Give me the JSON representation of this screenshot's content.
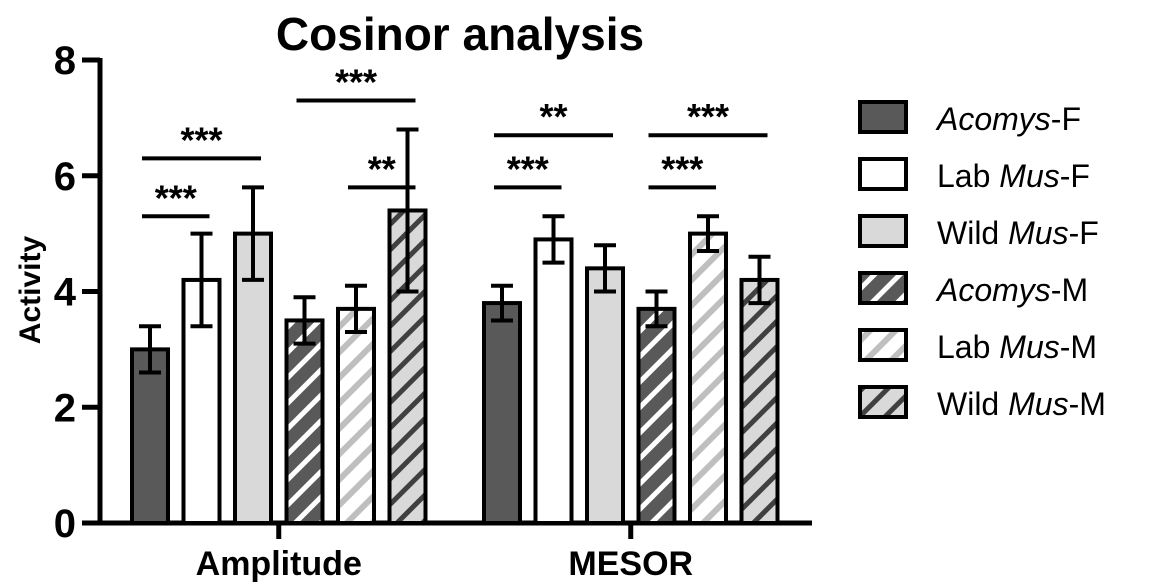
{
  "chart_data": {
    "type": "bar",
    "title": "Cosinor analysis",
    "xlabel": "",
    "ylabel": "Activity",
    "ylim": [
      0,
      8
    ],
    "yticks": [
      "0",
      "2",
      "4",
      "6",
      "8"
    ],
    "categories": [
      "Amplitude",
      "MESOR"
    ],
    "grid": false,
    "legend_position": "right",
    "series": [
      {
        "name_prefix": "",
        "name_italic": "Acomys",
        "name_suffix": "-F",
        "values": [
          3.0,
          3.8
        ],
        "errors": [
          0.4,
          0.3
        ],
        "fill": "#595959",
        "pattern": "solid"
      },
      {
        "name_prefix": "Lab ",
        "name_italic": "Mus",
        "name_suffix": "-F",
        "values": [
          4.2,
          4.9
        ],
        "errors": [
          0.8,
          0.4
        ],
        "fill": "#ffffff",
        "pattern": "solid"
      },
      {
        "name_prefix": "Wild ",
        "name_italic": "Mus",
        "name_suffix": "-F",
        "values": [
          5.0,
          4.4
        ],
        "errors": [
          0.8,
          0.4
        ],
        "fill": "#d9d9d9",
        "pattern": "solid"
      },
      {
        "name_prefix": "",
        "name_italic": "Acomys",
        "name_suffix": "-M",
        "values": [
          3.5,
          3.7
        ],
        "errors": [
          0.4,
          0.3
        ],
        "fill": "#595959",
        "pattern": "hatch-white"
      },
      {
        "name_prefix": "Lab ",
        "name_italic": "Mus",
        "name_suffix": "-M",
        "values": [
          3.7,
          5.0
        ],
        "errors": [
          0.4,
          0.3
        ],
        "fill": "#ffffff",
        "pattern": "hatch-grey"
      },
      {
        "name_prefix": "Wild ",
        "name_italic": "Mus",
        "name_suffix": "-M",
        "values": [
          5.4,
          4.2
        ],
        "errors": [
          1.4,
          0.4
        ],
        "fill": "#d9d9d9",
        "pattern": "hatch-dark"
      }
    ],
    "significance": [
      {
        "category": 0,
        "from": 0,
        "to": 1,
        "level": 5.3,
        "label": "***"
      },
      {
        "category": 0,
        "from": 0,
        "to": 2,
        "level": 6.3,
        "label": "***"
      },
      {
        "category": 0,
        "from": 3,
        "to": 5,
        "level": 7.3,
        "label": "***"
      },
      {
        "category": 0,
        "from": 4,
        "to": 5,
        "level": 5.8,
        "label": "**"
      },
      {
        "category": 1,
        "from": 0,
        "to": 1,
        "level": 5.8,
        "label": "***"
      },
      {
        "category": 1,
        "from": 0,
        "to": 2,
        "level": 6.7,
        "label": "**"
      },
      {
        "category": 1,
        "from": 3,
        "to": 4,
        "level": 5.8,
        "label": "***"
      },
      {
        "category": 1,
        "from": 3,
        "to": 5,
        "level": 6.7,
        "label": "***"
      }
    ]
  }
}
